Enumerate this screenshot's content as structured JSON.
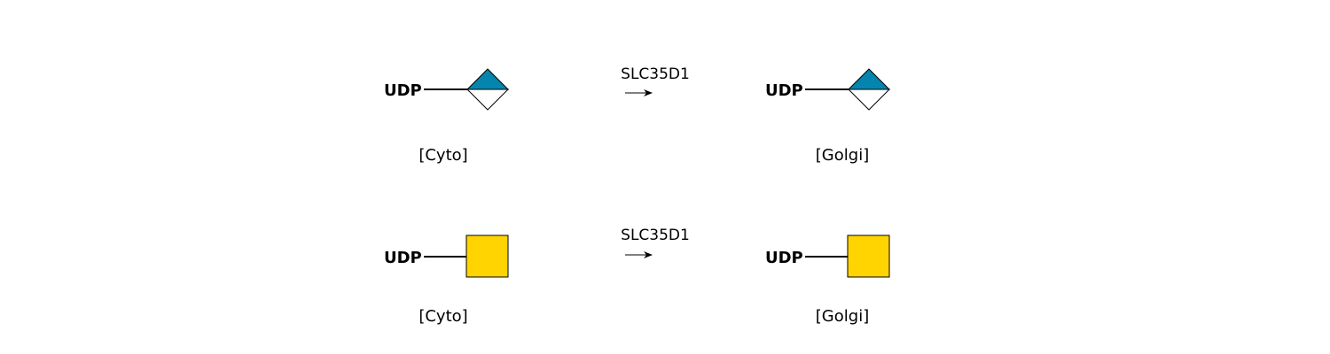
{
  "colors": {
    "gal_nac_yellow": "#FFD400",
    "glc_a_blue": "#0385AE",
    "outline": "#000000",
    "background": "#FFFFFF"
  },
  "reactions": [
    {
      "donor_label": "UDP",
      "substrate_icon": "half-filled-diamond-icon",
      "enzyme": "SLC35D1",
      "from_compartment": "[Cyto]",
      "product_label": "UDP",
      "product_icon": "half-filled-diamond-icon",
      "to_compartment": "[Golgi]"
    },
    {
      "donor_label": "UDP",
      "substrate_icon": "yellow-square-icon",
      "enzyme": "SLC35D1",
      "from_compartment": "[Cyto]",
      "product_label": "UDP",
      "product_icon": "yellow-square-icon",
      "to_compartment": "[Golgi]"
    }
  ]
}
